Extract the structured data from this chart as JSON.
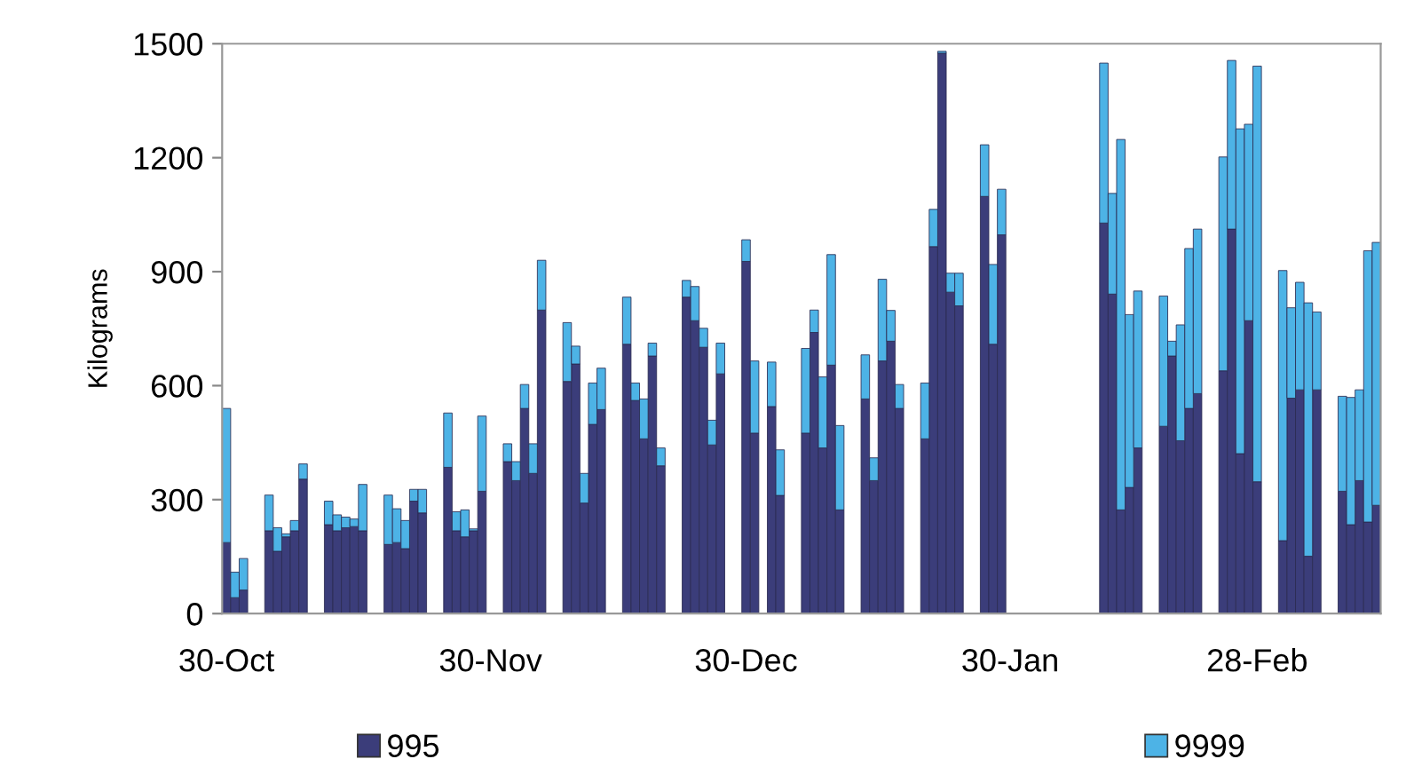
{
  "chart_data": {
    "type": "bar",
    "stacked": true,
    "ylabel": "Kilograms",
    "categories": [
      "30-Oct",
      null,
      null,
      null,
      null,
      null,
      null,
      null,
      null,
      null,
      null,
      null,
      null,
      null,
      null,
      null,
      null,
      null,
      null,
      null,
      null,
      null,
      null,
      null,
      null,
      null,
      null,
      null,
      null,
      null,
      null,
      "30-Nov",
      null,
      null,
      null,
      null,
      null,
      null,
      null,
      null,
      null,
      null,
      null,
      null,
      null,
      null,
      null,
      null,
      null,
      null,
      null,
      null,
      null,
      null,
      null,
      null,
      null,
      null,
      null,
      null,
      null,
      "30-Dec",
      null,
      null,
      null,
      null,
      null,
      null,
      null,
      null,
      null,
      null,
      null,
      null,
      null,
      null,
      null,
      null,
      null,
      null,
      null,
      null,
      null,
      null,
      null,
      null,
      null,
      null,
      null,
      null,
      null,
      null,
      "30-Jan",
      null,
      null,
      null,
      null,
      null,
      null,
      null,
      null,
      null,
      null,
      null,
      null,
      null,
      null,
      null,
      null,
      null,
      null,
      null,
      null,
      null,
      null,
      null,
      null,
      null,
      null,
      null,
      null,
      "28-Feb",
      null,
      null,
      null,
      null,
      null,
      null,
      null,
      null,
      null,
      null,
      null,
      null,
      null,
      null
    ],
    "series": [
      {
        "name": "995",
        "color": "#3b3d7a",
        "values": [
          187,
          42,
          62,
          null,
          null,
          218,
          164,
          202,
          218,
          354,
          null,
          null,
          234,
          218,
          226,
          229,
          218,
          null,
          null,
          182,
          187,
          171,
          296,
          265,
          null,
          null,
          385,
          218,
          202,
          218,
          322,
          null,
          null,
          400,
          350,
          540,
          369,
          799,
          null,
          null,
          611,
          657,
          291,
          498,
          537,
          null,
          null,
          709,
          561,
          460,
          678,
          389,
          null,
          null,
          833,
          771,
          701,
          444,
          631,
          null,
          null,
          927,
          475,
          null,
          545,
          311,
          null,
          null,
          475,
          740,
          436,
          654,
          273,
          null,
          null,
          565,
          350,
          665,
          717,
          540,
          null,
          null,
          460,
          966,
          1475,
          846,
          810,
          null,
          null,
          1098,
          709,
          997,
          null,
          null,
          null,
          null,
          null,
          null,
          null,
          null,
          null,
          null,
          null,
          1028,
          841,
          273,
          332,
          436,
          null,
          null,
          493,
          678,
          455,
          540,
          579,
          null,
          null,
          639,
          1012,
          421,
          771,
          347,
          null,
          null,
          192,
          567,
          589,
          151,
          589,
          null,
          null,
          322,
          234,
          350,
          241,
          285
        ]
      },
      {
        "name": "9999",
        "color": "#4db3e6",
        "values": [
          353,
          67,
          83,
          null,
          null,
          94,
          62,
          8,
          27,
          40,
          null,
          null,
          62,
          42,
          28,
          20,
          122,
          null,
          null,
          130,
          89,
          74,
          31,
          62,
          null,
          null,
          143,
          50,
          71,
          5,
          198,
          null,
          null,
          47,
          50,
          63,
          78,
          131,
          null,
          null,
          155,
          47,
          78,
          109,
          109,
          null,
          null,
          124,
          46,
          105,
          34,
          47,
          null,
          null,
          44,
          90,
          50,
          65,
          81,
          null,
          null,
          57,
          190,
          null,
          117,
          120,
          null,
          null,
          223,
          59,
          187,
          291,
          222,
          null,
          null,
          116,
          60,
          215,
          81,
          63,
          null,
          null,
          147,
          98,
          5,
          50,
          86,
          null,
          null,
          136,
          210,
          120,
          null,
          null,
          null,
          null,
          null,
          null,
          null,
          null,
          null,
          null,
          null,
          421,
          265,
          975,
          455,
          413,
          null,
          null,
          343,
          39,
          305,
          421,
          433,
          null,
          null,
          563,
          444,
          855,
          517,
          1094,
          null,
          null,
          711,
          238,
          283,
          667,
          205,
          null,
          null,
          250,
          335,
          239,
          714,
          692
        ]
      }
    ],
    "ylim": [
      0,
      1500
    ],
    "yticks": [
      0,
      300,
      600,
      900,
      1200,
      1500
    ],
    "legend": "bottom"
  }
}
